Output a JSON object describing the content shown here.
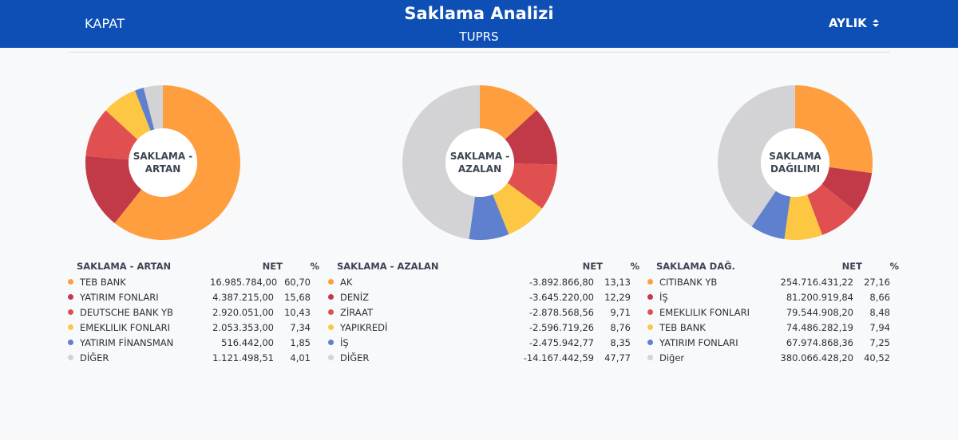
{
  "header": {
    "close_label": "KAPAT",
    "title": "Saklama Analizi",
    "subtitle": "TUPRS",
    "period_label": "AYLIK",
    "period_icon": "sort-updown-icon"
  },
  "colors": {
    "orange": "#ff9e3f",
    "crimson": "#c23a48",
    "red": "#e05050",
    "yellow": "#fdc743",
    "blue": "#5f7fcf",
    "gray": "#d3d3d5",
    "header_bg": "#0d4fb5"
  },
  "chart_data": [
    {
      "type": "pie",
      "title": "SAKLAMA - ARTAN",
      "net_header": "NET",
      "pct_header": "%",
      "items": [
        {
          "name": "TEB BANK",
          "net": "16.985.784,00",
          "pct_label": "60,70",
          "value": 60.7,
          "color": "#ff9e3f"
        },
        {
          "name": "YATIRIM FONLARI",
          "net": "4.387.215,00",
          "pct_label": "15,68",
          "value": 15.68,
          "color": "#c23a48"
        },
        {
          "name": "DEUTSCHE BANK YB",
          "net": "2.920.051,00",
          "pct_label": "10,43",
          "value": 10.43,
          "color": "#e05050"
        },
        {
          "name": "EMEKLILIK FONLARI",
          "net": "2.053.353,00",
          "pct_label": "7,34",
          "value": 7.34,
          "color": "#fdc743"
        },
        {
          "name": "YATIRIM FİNANSMAN",
          "net": "516.442,00",
          "pct_label": "1,85",
          "value": 1.85,
          "color": "#5f7fcf"
        },
        {
          "name": "DİĞER",
          "net": "1.121.498,51",
          "pct_label": "4,01",
          "value": 4.01,
          "color": "#d3d3d5"
        }
      ]
    },
    {
      "type": "pie",
      "title": "SAKLAMA - AZALAN",
      "net_header": "NET",
      "pct_header": "%",
      "items": [
        {
          "name": "AK",
          "net": "-3.892.866,80",
          "pct_label": "13,13",
          "value": 13.13,
          "color": "#ff9e3f"
        },
        {
          "name": "DENİZ",
          "net": "-3.645.220,00",
          "pct_label": "12,29",
          "value": 12.29,
          "color": "#c23a48"
        },
        {
          "name": "ZİRAAT",
          "net": "-2.878.568,56",
          "pct_label": "9,71",
          "value": 9.71,
          "color": "#e05050"
        },
        {
          "name": "YAPIKREDİ",
          "net": "-2.596.719,26",
          "pct_label": "8,76",
          "value": 8.76,
          "color": "#fdc743"
        },
        {
          "name": "İŞ",
          "net": "-2.475.942,77",
          "pct_label": "8,35",
          "value": 8.35,
          "color": "#5f7fcf"
        },
        {
          "name": "DİĞER",
          "net": "-14.167.442,59",
          "pct_label": "47,77",
          "value": 47.77,
          "color": "#d3d3d5"
        }
      ]
    },
    {
      "type": "pie",
      "title": "SAKLAMA DAĞ.",
      "net_header": "NET",
      "pct_header": "%",
      "items": [
        {
          "name": "CITIBANK YB",
          "net": "254.716.431,22",
          "pct_label": "27,16",
          "value": 27.16,
          "color": "#ff9e3f"
        },
        {
          "name": "İŞ",
          "net": "81.200.919,84",
          "pct_label": "8,66",
          "value": 8.66,
          "color": "#c23a48"
        },
        {
          "name": "EMEKLILIK FONLARI",
          "net": "79.544.908,20",
          "pct_label": "8,48",
          "value": 8.48,
          "color": "#e05050"
        },
        {
          "name": "TEB BANK",
          "net": "74.486.282,19",
          "pct_label": "7,94",
          "value": 7.94,
          "color": "#fdc743"
        },
        {
          "name": "YATIRIM FONLARI",
          "net": "67.974.868,36",
          "pct_label": "7,25",
          "value": 7.25,
          "color": "#5f7fcf"
        },
        {
          "name": "Diğer",
          "net": "380.066.428,20",
          "pct_label": "40,52",
          "value": 40.52,
          "color": "#d3d3d5"
        }
      ]
    }
  ],
  "donut_labels": [
    {
      "line1": "SAKLAMA -",
      "line2": "ARTAN"
    },
    {
      "line1": "SAKLAMA -",
      "line2": "AZALAN"
    },
    {
      "line1": "SAKLAMA",
      "line2": "DAĞILIMI"
    }
  ]
}
